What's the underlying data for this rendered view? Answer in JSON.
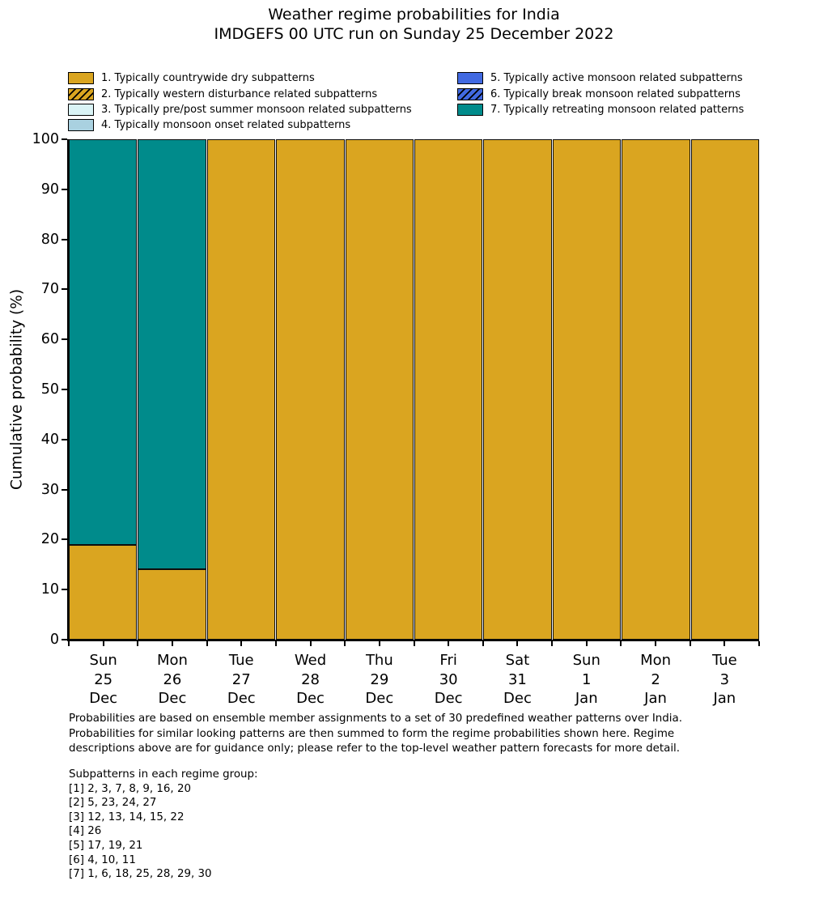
{
  "chart_data": {
    "type": "bar",
    "stacked": true,
    "title_line1": "Weather regime probabilities for India",
    "title_line2": "IMDGEFS 00 UTC run on Sunday 25 December 2022",
    "ylabel": "Cumulative probability (%)",
    "ylim": [
      0,
      100
    ],
    "yticks": [
      0,
      10,
      20,
      30,
      40,
      50,
      60,
      70,
      80,
      90,
      100
    ],
    "grid": false,
    "legend_position": "top",
    "categories": [
      {
        "day": "Sun",
        "date": "25",
        "month": "Dec"
      },
      {
        "day": "Mon",
        "date": "26",
        "month": "Dec"
      },
      {
        "day": "Tue",
        "date": "27",
        "month": "Dec"
      },
      {
        "day": "Wed",
        "date": "28",
        "month": "Dec"
      },
      {
        "day": "Thu",
        "date": "29",
        "month": "Dec"
      },
      {
        "day": "Fri",
        "date": "30",
        "month": "Dec"
      },
      {
        "day": "Sat",
        "date": "31",
        "month": "Dec"
      },
      {
        "day": "Sun",
        "date": "1",
        "month": "Jan"
      },
      {
        "day": "Mon",
        "date": "2",
        "month": "Jan"
      },
      {
        "day": "Tue",
        "date": "3",
        "month": "Jan"
      }
    ],
    "series": [
      {
        "name": "1. Typically countrywide dry subpatterns",
        "color": "#daa520",
        "hatch": false,
        "values": [
          19,
          14,
          100,
          100,
          100,
          100,
          100,
          100,
          100,
          100
        ]
      },
      {
        "name": "7. Typically retreating monsoon related patterns",
        "color": "#008b8b",
        "hatch": false,
        "values": [
          81,
          86,
          0,
          0,
          0,
          0,
          0,
          0,
          0,
          0
        ]
      }
    ],
    "legend_entries": [
      {
        "label": "1. Typically countrywide dry subpatterns",
        "color": "#daa520",
        "hatch": false
      },
      {
        "label": "2. Typically western disturbance related subpatterns",
        "color": "#daa520",
        "hatch": true
      },
      {
        "label": "3. Typically pre/post summer monsoon related subpatterns",
        "color": "#daf4f6",
        "hatch": false
      },
      {
        "label": "4. Typically monsoon onset related subpatterns",
        "color": "#a9d1e0",
        "hatch": false
      },
      {
        "label": "5. Typically active monsoon related subpatterns",
        "color": "#4169e1",
        "hatch": false
      },
      {
        "label": "6. Typically break monsoon related subpatterns",
        "color": "#4169e1",
        "hatch": true
      },
      {
        "label": "7. Typically retreating monsoon related patterns",
        "color": "#008b8b",
        "hatch": false
      }
    ],
    "edge_color": "#0d0d0d"
  },
  "footnote": {
    "lines": [
      "Probabilities are based on ensemble member assignments to a set of 30 predefined weather patterns over India.",
      "Probabilities for similar looking patterns are then summed to form the regime probabilities shown here. Regime",
      "descriptions above are for guidance only; please refer to the top-level weather pattern forecasts for more detail."
    ]
  },
  "subpatterns": {
    "heading": "Subpatterns in each regime group:",
    "groups": [
      "[1] 2, 3, 7, 8, 9, 16, 20",
      "[2] 5, 23, 24, 27",
      "[3] 12, 13, 14, 15, 22",
      "[4] 26",
      "[5] 17, 19, 21",
      "[6] 4, 10, 11",
      "[7] 1, 6, 18, 25, 28, 29, 30"
    ]
  }
}
